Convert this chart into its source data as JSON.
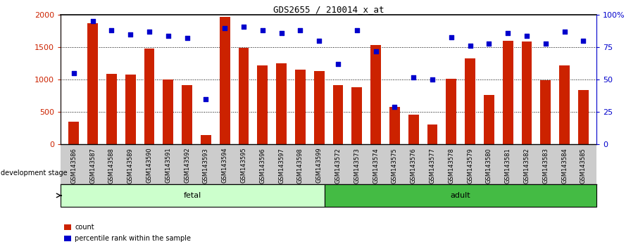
{
  "title": "GDS2655 / 210014_x_at",
  "samples": [
    "GSM143586",
    "GSM143587",
    "GSM143588",
    "GSM143589",
    "GSM143590",
    "GSM143591",
    "GSM143592",
    "GSM143593",
    "GSM143594",
    "GSM143595",
    "GSM143596",
    "GSM143597",
    "GSM143598",
    "GSM143599",
    "GSM143572",
    "GSM143573",
    "GSM143574",
    "GSM143575",
    "GSM143576",
    "GSM143577",
    "GSM143578",
    "GSM143579",
    "GSM143580",
    "GSM143581",
    "GSM143582",
    "GSM143583",
    "GSM143584",
    "GSM143585"
  ],
  "counts": [
    350,
    1870,
    1090,
    1080,
    1480,
    1000,
    920,
    140,
    1975,
    1490,
    1220,
    1250,
    1160,
    1130,
    920,
    880,
    1540,
    580,
    460,
    310,
    1010,
    1330,
    760,
    1600,
    1590,
    990,
    1220,
    840
  ],
  "percentiles": [
    55,
    95,
    88,
    85,
    87,
    84,
    82,
    35,
    90,
    91,
    88,
    86,
    88,
    80,
    62,
    88,
    72,
    29,
    52,
    50,
    83,
    76,
    78,
    86,
    84,
    78,
    87,
    80
  ],
  "fetal_count": 14,
  "adult_count": 14,
  "bar_color": "#cc2200",
  "dot_color": "#0000cc",
  "fetal_color": "#ccffcc",
  "adult_color": "#44bb44",
  "xlabels_bg": "#cccccc",
  "ylim_left": [
    0,
    2000
  ],
  "ylim_right": [
    0,
    100
  ],
  "yticks_left": [
    0,
    500,
    1000,
    1500,
    2000
  ],
  "ytick_labels_left": [
    "0",
    "500",
    "1000",
    "1500",
    "2000"
  ],
  "yticks_right": [
    0,
    25,
    50,
    75,
    100
  ],
  "ytick_labels_right": [
    "0",
    "25",
    "50",
    "75",
    "100%"
  ],
  "grid_vals": [
    500,
    1000,
    1500
  ]
}
